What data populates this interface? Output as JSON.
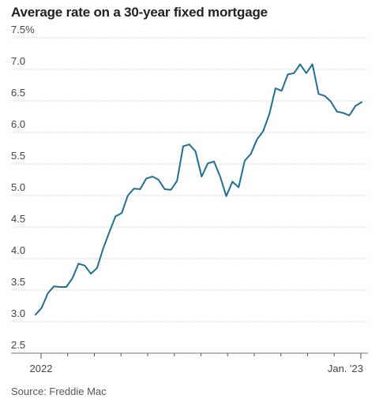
{
  "chart_data": {
    "type": "line",
    "title": "Average rate on a 30-year fixed mortgage",
    "source": "Source: Freddie Mac",
    "xlabel": "",
    "ylabel": "",
    "ylim": [
      2.5,
      7.5
    ],
    "yticks": [
      2.5,
      3.0,
      3.5,
      4.0,
      4.5,
      5.0,
      5.5,
      6.0,
      6.5,
      7.0,
      7.5
    ],
    "ytick_labels": [
      "2.5",
      "3.0",
      "3.5",
      "4.0",
      "4.5",
      "5.0",
      "5.5",
      "6.0",
      "6.5",
      "7.0",
      "7.5%"
    ],
    "xticks_labels": [
      "2022",
      "Jan. '23"
    ],
    "grid": true,
    "line_color": "#1f6f95",
    "series": [
      {
        "values": [
          3.11,
          3.22,
          3.45,
          3.56,
          3.55,
          3.55,
          3.69,
          3.92,
          3.89,
          3.76,
          3.85,
          4.16,
          4.42,
          4.67,
          4.72,
          5.0,
          5.11,
          5.1,
          5.27,
          5.3,
          5.25,
          5.1,
          5.09,
          5.23,
          5.78,
          5.81,
          5.7,
          5.3,
          5.51,
          5.54,
          5.3,
          4.99,
          5.22,
          5.13,
          5.55,
          5.66,
          5.89,
          6.02,
          6.29,
          6.7,
          6.66,
          6.92,
          6.94,
          7.08,
          6.94,
          7.08,
          6.61,
          6.58,
          6.49,
          6.33,
          6.31,
          6.27,
          6.42,
          6.48
        ]
      }
    ]
  }
}
